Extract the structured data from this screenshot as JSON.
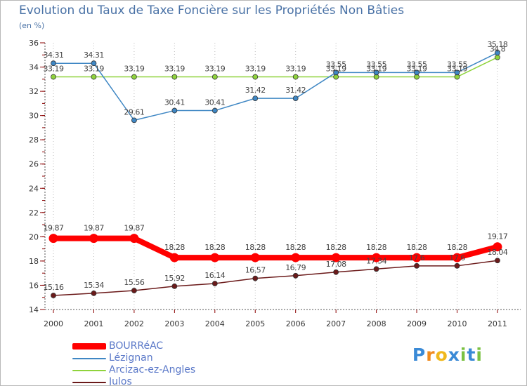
{
  "title": "Evolution du Taux de Taxe Foncière sur les Propriétés Non Bâties",
  "unit_label": "(en %)",
  "logo": {
    "letters": [
      "P",
      "r",
      "o",
      "x",
      "i",
      "t",
      "i"
    ],
    "colors": [
      "#3a8ad6",
      "#f08a1c",
      "#f0b81c",
      "#3a8ad6",
      "#7ac142",
      "#3a8ad6",
      "#7ac142"
    ]
  },
  "chart_data": {
    "type": "line",
    "title": "Evolution du Taux de Taxe Foncière sur les Propriétés Non Bâties",
    "ylabel": "(en %)",
    "xlabel": "",
    "categories": [
      "2000",
      "2001",
      "2002",
      "2003",
      "2004",
      "2005",
      "2006",
      "2007",
      "2008",
      "2009",
      "2010",
      "2011"
    ],
    "ylim": [
      14,
      36
    ],
    "yticks": [
      14,
      16,
      18,
      20,
      22,
      24,
      26,
      28,
      30,
      32,
      34,
      36
    ],
    "grid": false,
    "series": [
      {
        "name": "BOURRéAC",
        "color": "#ff0000",
        "thick": true,
        "values": [
          19.87,
          19.87,
          19.87,
          18.28,
          18.28,
          18.28,
          18.28,
          18.28,
          18.28,
          18.28,
          18.28,
          19.17
        ],
        "labels": [
          "19.87",
          "19.87",
          "19.87",
          "18.28",
          "18.28",
          "18.28",
          "18.28",
          "18.28",
          "18.28",
          "18.28",
          "18.28",
          "19.17"
        ]
      },
      {
        "name": "Lézignan",
        "color": "#3f87c4",
        "thick": false,
        "values": [
          34.31,
          34.31,
          29.61,
          30.41,
          30.41,
          31.42,
          31.42,
          33.55,
          33.55,
          33.55,
          33.55,
          35.18
        ],
        "labels": [
          "34.31",
          "34.31",
          "29.61",
          "30.41",
          "30.41",
          "31.42",
          "31.42",
          "33.55",
          "33.55",
          "33.55",
          "33.55",
          "35.18"
        ]
      },
      {
        "name": "Arcizac-ez-Angles",
        "color": "#8fd33c",
        "thick": false,
        "values": [
          33.19,
          33.19,
          33.19,
          33.19,
          33.19,
          33.19,
          33.19,
          33.19,
          33.19,
          33.19,
          33.19,
          34.8
        ],
        "labels": [
          "33.19",
          "33.19",
          "33.19",
          "33.19",
          "33.19",
          "33.19",
          "33.19",
          "33.19",
          "33.19",
          "33.19",
          "33.19",
          "34.8"
        ]
      },
      {
        "name": "Julos",
        "color": "#6b1a1a",
        "thick": false,
        "values": [
          15.16,
          15.34,
          15.56,
          15.92,
          16.14,
          16.57,
          16.79,
          17.08,
          17.34,
          17.6,
          17.6,
          18.04
        ],
        "labels": [
          "15.16",
          "15.34",
          "15.56",
          "15.92",
          "16.14",
          "16.57",
          "16.79",
          "17.08",
          "17.34",
          "17.6",
          "17.6",
          "18.04"
        ]
      }
    ]
  }
}
